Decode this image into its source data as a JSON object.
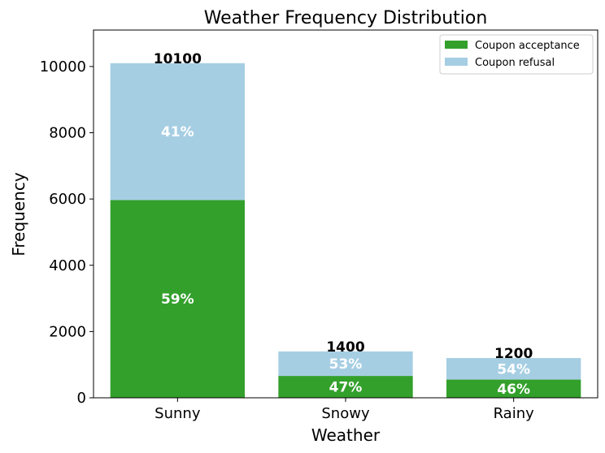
{
  "chart_data": {
    "type": "bar",
    "stacked": true,
    "title": "Weather Frequency Distribution",
    "xlabel": "Weather",
    "ylabel": "Frequency",
    "categories": [
      "Sunny",
      "Snowy",
      "Rainy"
    ],
    "totals": [
      10100,
      1400,
      1200
    ],
    "total_labels": [
      "10100",
      "1400",
      "1200"
    ],
    "ylim": [
      0,
      11100
    ],
    "yticks": [
      0,
      2000,
      4000,
      6000,
      8000,
      10000
    ],
    "ytick_labels": [
      "0",
      "2000",
      "4000",
      "6000",
      "8000",
      "10000"
    ],
    "legend": {
      "placement": "top-right"
    },
    "series": [
      {
        "name": "Coupon acceptance",
        "color": "#33a02c",
        "values": [
          5970,
          660,
          550
        ],
        "pct_labels": [
          "59%",
          "47%",
          "46%"
        ]
      },
      {
        "name": "Coupon refusal",
        "color": "#a6cee3",
        "values": [
          4130,
          740,
          650
        ],
        "pct_labels": [
          "41%",
          "53%",
          "54%"
        ]
      }
    ]
  }
}
